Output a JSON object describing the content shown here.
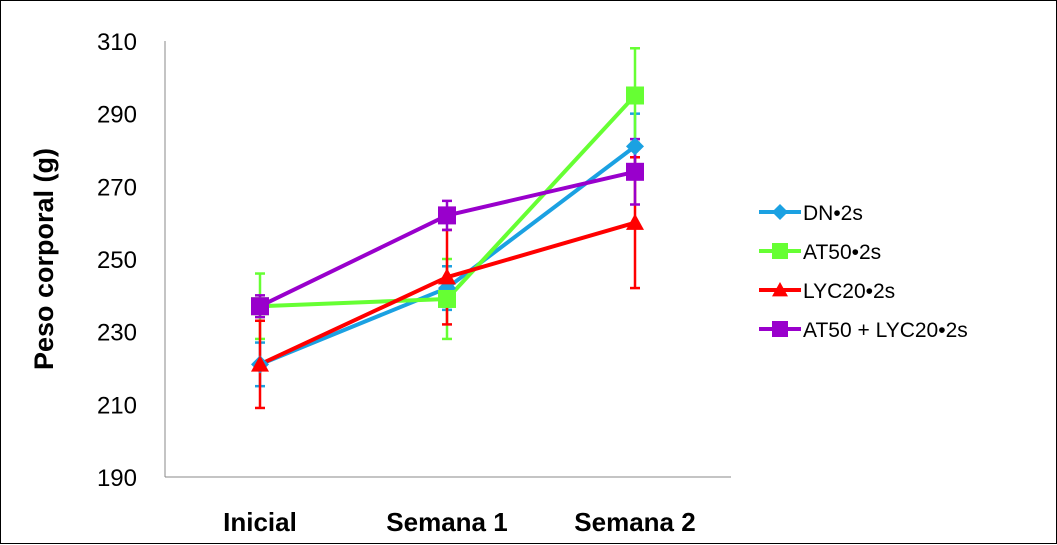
{
  "chart_data": {
    "type": "line",
    "title": "",
    "xlabel": "",
    "ylabel": "Peso corporal (g)",
    "categories": [
      "Inicial",
      "Semana 1",
      "Semana 2"
    ],
    "ylim": [
      190,
      310
    ],
    "yticks": [
      190,
      210,
      230,
      250,
      270,
      290,
      310
    ],
    "grid": false,
    "legend_position": "right",
    "series": [
      {
        "name": "DN•2s",
        "color": "#1ba1e2",
        "marker": "diamond",
        "values": [
          221,
          242,
          281
        ],
        "error": [
          6,
          6,
          9
        ]
      },
      {
        "name": "AT50•2s",
        "color": "#66ff33",
        "marker": "square",
        "values": [
          237,
          239,
          295
        ],
        "error": [
          9,
          11,
          13
        ]
      },
      {
        "name": "LYC20•2s",
        "color": "#ff0000",
        "marker": "triangle",
        "values": [
          221,
          245,
          260
        ],
        "error": [
          12,
          13,
          18
        ]
      },
      {
        "name": "AT50 + LYC20•2s",
        "color": "#9900cc",
        "marker": "square",
        "values": [
          237,
          262,
          274
        ],
        "error": [
          3,
          4,
          9
        ]
      }
    ]
  }
}
